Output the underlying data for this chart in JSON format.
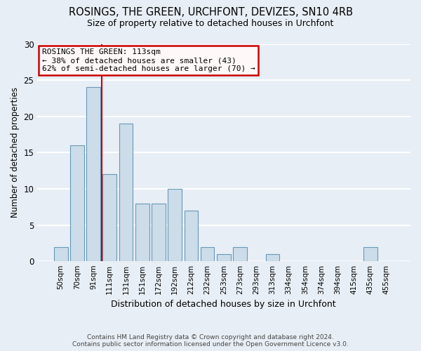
{
  "title1": "ROSINGS, THE GREEN, URCHFONT, DEVIZES, SN10 4RB",
  "title2": "Size of property relative to detached houses in Urchfont",
  "xlabel": "Distribution of detached houses by size in Urchfont",
  "ylabel": "Number of detached properties",
  "categories": [
    "50sqm",
    "70sqm",
    "91sqm",
    "111sqm",
    "131sqm",
    "151sqm",
    "172sqm",
    "192sqm",
    "212sqm",
    "232sqm",
    "253sqm",
    "273sqm",
    "293sqm",
    "313sqm",
    "334sqm",
    "354sqm",
    "374sqm",
    "394sqm",
    "415sqm",
    "435sqm",
    "455sqm"
  ],
  "values": [
    2,
    16,
    24,
    12,
    19,
    8,
    8,
    10,
    7,
    2,
    1,
    2,
    0,
    1,
    0,
    0,
    0,
    0,
    0,
    2,
    0
  ],
  "bar_color": "#ccdce8",
  "bar_edge_color": "#6699bb",
  "annotation_line1": "ROSINGS THE GREEN: 113sqm",
  "annotation_line2": "← 38% of detached houses are smaller (43)",
  "annotation_line3": "62% of semi-detached houses are larger (70) →",
  "ylim": [
    0,
    30
  ],
  "yticks": [
    0,
    5,
    10,
    15,
    20,
    25,
    30
  ],
  "footer1": "Contains HM Land Registry data © Crown copyright and database right 2024.",
  "footer2": "Contains public sector information licensed under the Open Government Licence v3.0.",
  "bg_color": "#e8eef5",
  "grid_color": "#ffffff",
  "vline_x_index": 2,
  "title1_fontsize": 10.5,
  "title2_fontsize": 9
}
